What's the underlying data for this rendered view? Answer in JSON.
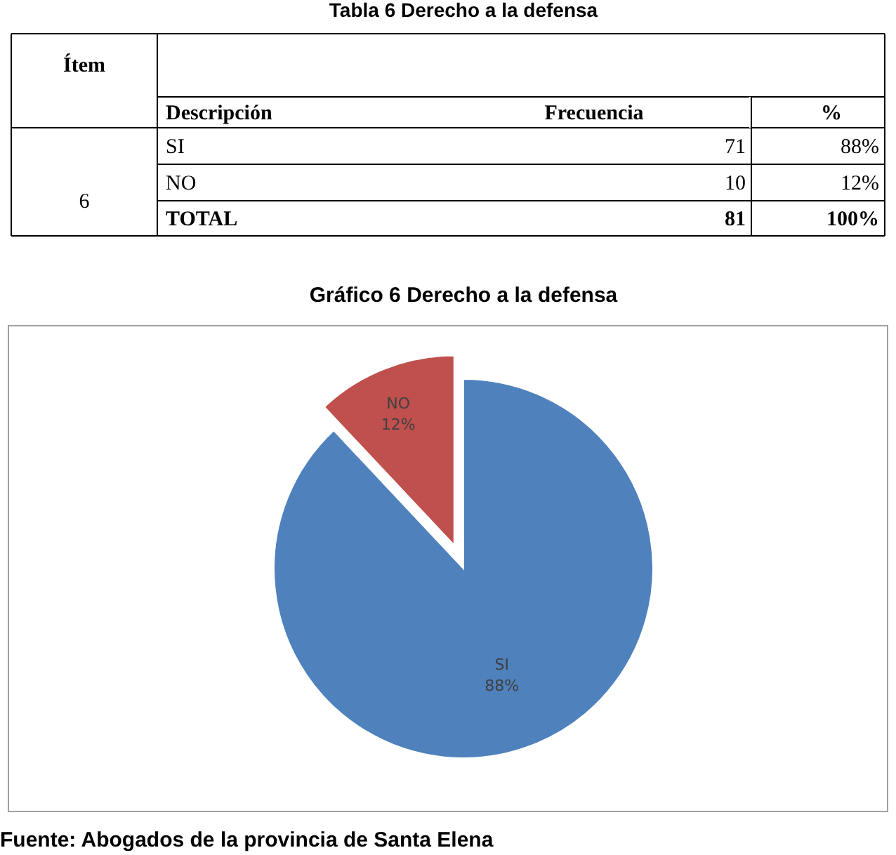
{
  "chart_data": {
    "type": "pie",
    "title": "Gráfico  6 Derecho a la defensa",
    "categories": [
      "SI",
      "NO"
    ],
    "values": [
      88,
      12
    ],
    "colors": [
      "#4f81bd",
      "#c0504d"
    ],
    "value_labels": [
      "88%",
      "12%"
    ],
    "annotations": [
      "Tabla  6 Derecho a la defensa",
      "Ítem",
      "Descripción",
      "Frecuencia",
      "%",
      "6",
      "SI",
      "71",
      "88%",
      "NO",
      "10",
      "12%",
      "TOTAL",
      "81",
      "100%",
      "Fuente: Abogados de la provincia de Santa Elena"
    ]
  }
}
